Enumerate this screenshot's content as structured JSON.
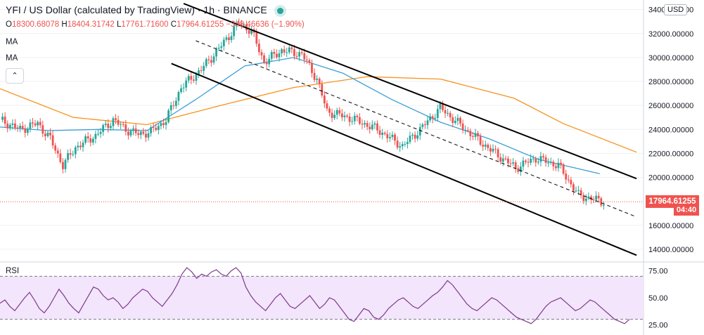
{
  "header": {
    "symbol": "YFI / US Dollar (calculated by TradingView)",
    "interval": "1h",
    "exchange": "BINANCE"
  },
  "ohlc": {
    "open_label": "O",
    "open": "18300.68078",
    "high_label": "H",
    "high": "18404.31742",
    "low_label": "L",
    "low": "17761.71600",
    "close_label": "C",
    "close": "17964.61255",
    "change": "−348.46636 (−1.90%)"
  },
  "indicators": {
    "ma1": "MA",
    "ma2": "MA",
    "rsi": "RSI"
  },
  "axis": {
    "currency": "USD"
  },
  "tags": {
    "last_price": "17964.61255",
    "countdown": "04:40"
  },
  "colors": {
    "up": "#26a69a",
    "down": "#ef5350",
    "ma_slow": "#f7931e",
    "ma_fast": "#3a9fd8",
    "rsi_line": "#7e3a8c",
    "rsi_band": "#f3e5fb",
    "channel": "#000000",
    "grid": "#eef0f3"
  },
  "chart_data": [
    {
      "type": "candlestick",
      "title": "YFI / US Dollar (calculated by TradingView)",
      "ylim": [
        13000,
        34800
      ],
      "y_ticks": [
        "34000.00000",
        "32000.00000",
        "30000.00000",
        "28000.00000",
        "26000.00000",
        "24000.00000",
        "22000.00000",
        "20000.00000",
        "16000.00000",
        "14000.00000"
      ],
      "last_price": 17964.61255,
      "candle_count": 185,
      "close_path_anchors": [
        [
          0,
          24800
        ],
        [
          8,
          24000
        ],
        [
          15,
          24500
        ],
        [
          20,
          23200
        ],
        [
          25,
          21000
        ],
        [
          30,
          22500
        ],
        [
          38,
          23500
        ],
        [
          45,
          24800
        ],
        [
          50,
          24000
        ],
        [
          55,
          23600
        ],
        [
          60,
          23800
        ],
        [
          66,
          24800
        ],
        [
          72,
          27500
        ],
        [
          80,
          29000
        ],
        [
          88,
          31000
        ],
        [
          95,
          32900
        ],
        [
          100,
          32200
        ],
        [
          105,
          29600
        ],
        [
          112,
          30600
        ],
        [
          120,
          30300
        ],
        [
          126,
          28200
        ],
        [
          130,
          25500
        ],
        [
          140,
          24900
        ],
        [
          150,
          24000
        ],
        [
          160,
          22600
        ],
        [
          167,
          24000
        ],
        [
          175,
          25800
        ],
        [
          185,
          24000
        ],
        [
          195,
          22300
        ],
        [
          205,
          20800
        ],
        [
          213,
          21600
        ],
        [
          222,
          21000
        ],
        [
          230,
          18500
        ],
        [
          240,
          17964
        ]
      ],
      "moving_averages": [
        {
          "name": "MA",
          "color": "#f7931e",
          "points": [
            [
              0,
              27400
            ],
            [
              30,
              25000
            ],
            [
              60,
              24400
            ],
            [
              90,
              26000
            ],
            [
              120,
              27500
            ],
            [
              150,
              28400
            ],
            [
              180,
              28200
            ],
            [
              210,
              26600
            ],
            [
              230,
              24500
            ],
            [
              260,
              22100
            ]
          ]
        },
        {
          "name": "MA",
          "color": "#3a9fd8",
          "points": [
            [
              0,
              24200
            ],
            [
              20,
              23900
            ],
            [
              40,
              24000
            ],
            [
              60,
              23900
            ],
            [
              80,
              26500
            ],
            [
              100,
              29300
            ],
            [
              120,
              30000
            ],
            [
              140,
              28700
            ],
            [
              160,
              26500
            ],
            [
              180,
              24600
            ],
            [
              200,
              23200
            ],
            [
              220,
              21500
            ],
            [
              245,
              20300
            ]
          ]
        }
      ],
      "channel_lines": [
        {
          "from": [
            75,
            34500
          ],
          "to": [
            260,
            19900
          ]
        },
        {
          "from": [
            70,
            29500
          ],
          "to": [
            260,
            13500
          ]
        },
        {
          "from": [
            80,
            31400
          ],
          "to": [
            260,
            16700
          ],
          "dashed": true
        }
      ]
    },
    {
      "type": "line",
      "name": "RSI",
      "ylim": [
        20,
        80
      ],
      "y_ticks": [
        "75.00",
        "50.00",
        "25.00"
      ],
      "band": [
        30,
        70
      ],
      "values": [
        45,
        48,
        42,
        38,
        44,
        50,
        55,
        48,
        40,
        36,
        42,
        50,
        58,
        52,
        45,
        40,
        36,
        44,
        52,
        60,
        58,
        52,
        48,
        50,
        46,
        40,
        44,
        50,
        54,
        58,
        56,
        50,
        46,
        42,
        48,
        54,
        62,
        72,
        78,
        74,
        68,
        72,
        70,
        74,
        76,
        72,
        70,
        75,
        78,
        73,
        60,
        52,
        46,
        42,
        38,
        44,
        50,
        54,
        48,
        42,
        40,
        44,
        48,
        52,
        46,
        40,
        44,
        50,
        48,
        42,
        36,
        30,
        28,
        34,
        40,
        38,
        32,
        30,
        34,
        40,
        44,
        48,
        50,
        46,
        42,
        40,
        44,
        48,
        52,
        55,
        60,
        66,
        62,
        56,
        50,
        44,
        40,
        38,
        42,
        46,
        50,
        48,
        44,
        40,
        36,
        32,
        30,
        28,
        26,
        30,
        36,
        42,
        46,
        48,
        50,
        46,
        42,
        38,
        40,
        44,
        48,
        46,
        42,
        38,
        34,
        30,
        28,
        26,
        30
      ]
    }
  ]
}
